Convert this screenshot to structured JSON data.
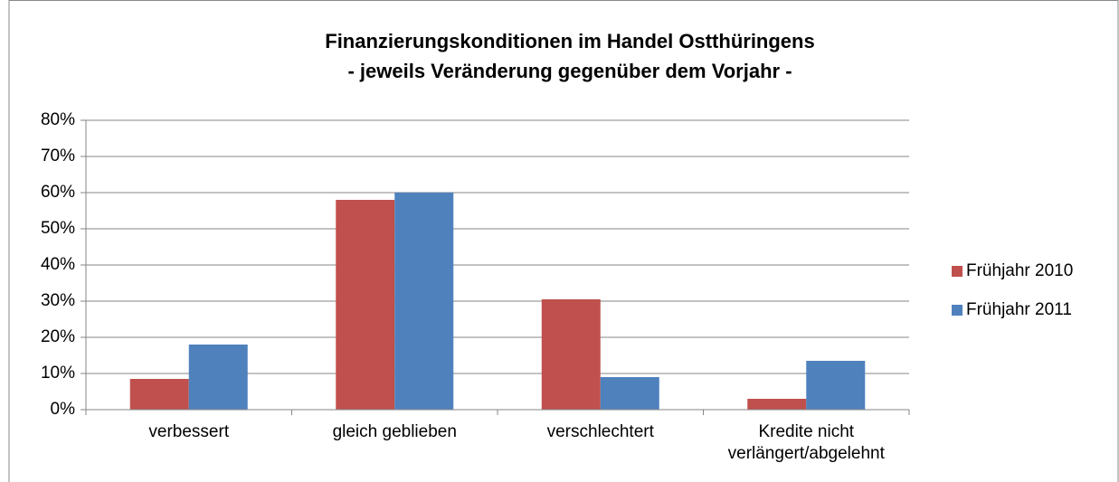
{
  "chart_data": {
    "type": "bar",
    "title": "Finanzierungskonditionen im Handel Ostthüringens",
    "subtitle": "- jeweils Veränderung gegenüber dem Vorjahr -",
    "categories": [
      "verbessert",
      "gleich geblieben",
      "verschlechtert",
      "Kredite nicht verlängert/abgelehnt"
    ],
    "series": [
      {
        "name": "Frühjahr 2010",
        "color": "#c0504d",
        "values": [
          8.5,
          58,
          30.5,
          3
        ]
      },
      {
        "name": "Frühjahr 2011",
        "color": "#4f81bd",
        "values": [
          18,
          60,
          9,
          13.5
        ]
      }
    ],
    "ylim": [
      0,
      80
    ],
    "yticks": [
      {
        "value": 0,
        "label": "0%"
      },
      {
        "value": 10,
        "label": "10%"
      },
      {
        "value": 20,
        "label": "20%"
      },
      {
        "value": 30,
        "label": "30%"
      },
      {
        "value": 40,
        "label": "40%"
      },
      {
        "value": 50,
        "label": "50%"
      },
      {
        "value": 60,
        "label": "60%"
      },
      {
        "value": 70,
        "label": "70%"
      },
      {
        "value": 80,
        "label": "80%"
      }
    ],
    "grid": true,
    "legend": "right"
  }
}
